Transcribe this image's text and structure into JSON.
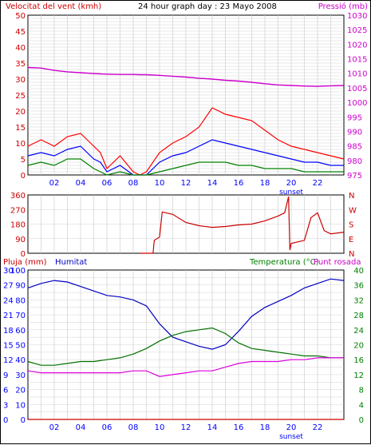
{
  "title": "24 hour graph day : 23 Mayo 2008",
  "colors": {
    "wind_gust": "#ff0000",
    "wind_avg": "#0000ff",
    "wind_min": "#008000",
    "pressure": "#cc00cc",
    "direction": "#cc0000",
    "humidity": "#0000c0",
    "temperature": "#007000",
    "dewpoint": "#dd00dd",
    "rain": "#cc0000",
    "grid": "#c8c8c8",
    "axis_wind": "#cc0000",
    "axis_pressure": "#cc00cc",
    "axis_rain": "#0000ff",
    "axis_temp": "#008000"
  },
  "x_ticks": [
    "02",
    "04",
    "06",
    "08",
    "10",
    "12",
    "14",
    "16",
    "18",
    "20",
    "22"
  ],
  "sunset_label": "sunset",
  "chart_data": [
    {
      "type": "line",
      "id": "wind",
      "ylabel_left": "Velocitat del vent (kmh)",
      "ylabel_right": "Pressió (mb)",
      "ylim": [
        0,
        50
      ],
      "y_ticks": [
        "0",
        "5",
        "10",
        "15",
        "20",
        "25",
        "30",
        "35",
        "40",
        "45",
        "50"
      ],
      "ylim_right": [
        975,
        1030
      ],
      "y_ticks_right": [
        "975",
        "980",
        "985",
        "990",
        "995",
        "1000",
        "1005",
        "1010",
        "1015",
        "1020",
        "1025",
        "1030"
      ],
      "x": [
        0,
        1,
        2,
        3,
        4,
        5,
        5.5,
        6,
        7,
        8,
        8.5,
        9,
        10,
        11,
        12,
        13,
        14,
        15,
        16,
        17,
        18,
        19,
        20,
        21,
        22,
        23,
        24
      ],
      "series": [
        {
          "key": "gust",
          "values": [
            9,
            11,
            9,
            12,
            13,
            9,
            7,
            2,
            6,
            1,
            0,
            1,
            7,
            10,
            12,
            15,
            21,
            19,
            18,
            17,
            14,
            11,
            9,
            8,
            7,
            6,
            5
          ]
        },
        {
          "key": "avg",
          "values": [
            6,
            7,
            6,
            8,
            9,
            5,
            4,
            1,
            3,
            0,
            0,
            0,
            4,
            6,
            7,
            9,
            11,
            10,
            9,
            8,
            7,
            6,
            5,
            4,
            4,
            3,
            3
          ]
        },
        {
          "key": "min",
          "values": [
            3,
            4,
            3,
            5,
            5,
            2,
            1,
            0,
            1,
            0,
            0,
            0,
            1,
            2,
            3,
            4,
            4,
            4,
            3,
            3,
            2,
            2,
            2,
            1,
            1,
            1,
            1
          ]
        },
        {
          "key": "pressure",
          "values": [
            1012,
            1011.8,
            1011,
            1010.5,
            1010.2,
            1009.9,
            1009.8,
            1009.7,
            1009.6,
            1009.6,
            1009.5,
            1009.5,
            1009.3,
            1009,
            1008.7,
            1008.3,
            1008,
            1007.6,
            1007.3,
            1006.9,
            1006.4,
            1006,
            1005.8,
            1005.6,
            1005.5,
            1005.7,
            1005.8
          ]
        }
      ]
    },
    {
      "type": "line",
      "id": "direction",
      "y_ticks": [
        "0",
        "90",
        "180",
        "270",
        "360"
      ],
      "ylim": [
        0,
        360
      ],
      "right_labels": [
        "N",
        "W",
        "S",
        "E",
        "N"
      ],
      "x": [
        8.5,
        9.5,
        9.6,
        10,
        10.2,
        11,
        12,
        13,
        14,
        15,
        16,
        17,
        18,
        19,
        19.5,
        19.8,
        19.9,
        20,
        21,
        21.5,
        22,
        22.5,
        23,
        24
      ],
      "values": [
        0,
        0,
        80,
        100,
        255,
        240,
        190,
        170,
        160,
        165,
        175,
        180,
        200,
        230,
        250,
        350,
        20,
        60,
        80,
        220,
        250,
        140,
        120,
        130
      ]
    },
    {
      "type": "line",
      "id": "temperature",
      "ylabel_left_rain": "Pluja (mm)",
      "ylabel_left_hum": "Humitat",
      "ylabel_right_temp": "Temperatura (°C)",
      "ylabel_right_dew": "Punt rosada",
      "rain_ticks": [
        "0",
        "3",
        "6",
        "9",
        "12",
        "15",
        "18",
        "21",
        "24",
        "27",
        "30"
      ],
      "hum_ticks": [
        "0",
        "10",
        "20",
        "30",
        "40",
        "50",
        "60",
        "70",
        "80",
        "90",
        "100"
      ],
      "temp_ticks": [
        "0",
        "4",
        "8",
        "12",
        "16",
        "20",
        "24",
        "28",
        "32",
        "36",
        "40"
      ],
      "ylim_hum": [
        0,
        100
      ],
      "ylim_temp": [
        0,
        40
      ],
      "x": [
        0,
        1,
        2,
        3,
        4,
        5,
        6,
        7,
        8,
        9,
        10,
        11,
        12,
        13,
        14,
        15,
        16,
        17,
        18,
        19,
        20,
        21,
        22,
        23,
        24
      ],
      "series": [
        {
          "key": "humidity",
          "values": [
            88,
            91,
            93,
            92,
            89,
            86,
            83,
            82,
            80,
            76,
            64,
            55,
            52,
            49,
            47,
            50,
            59,
            69,
            75,
            79,
            83,
            88,
            91,
            94,
            93
          ]
        },
        {
          "key": "temperature",
          "values": [
            15.5,
            14.5,
            14.5,
            15,
            15.5,
            15.5,
            16,
            16.5,
            17.5,
            19,
            21,
            22.5,
            23.5,
            24,
            24.5,
            23,
            20.5,
            19,
            18.5,
            18,
            17.5,
            17,
            17,
            16.5,
            16.5
          ]
        },
        {
          "key": "dewpoint",
          "values": [
            13,
            12.5,
            12.5,
            12.5,
            12.5,
            12.5,
            12.5,
            12.5,
            13,
            13,
            11.5,
            12,
            12.5,
            13,
            13,
            14,
            15,
            15.5,
            15.5,
            15.5,
            16,
            16,
            16.5,
            16.5,
            16.5
          ]
        },
        {
          "key": "rain",
          "values": [
            0,
            0,
            0,
            0,
            0,
            0,
            0,
            0,
            0,
            0,
            0,
            0,
            0,
            0,
            0,
            0,
            0,
            0,
            0,
            0,
            0,
            0,
            0,
            0,
            0
          ]
        }
      ]
    }
  ]
}
